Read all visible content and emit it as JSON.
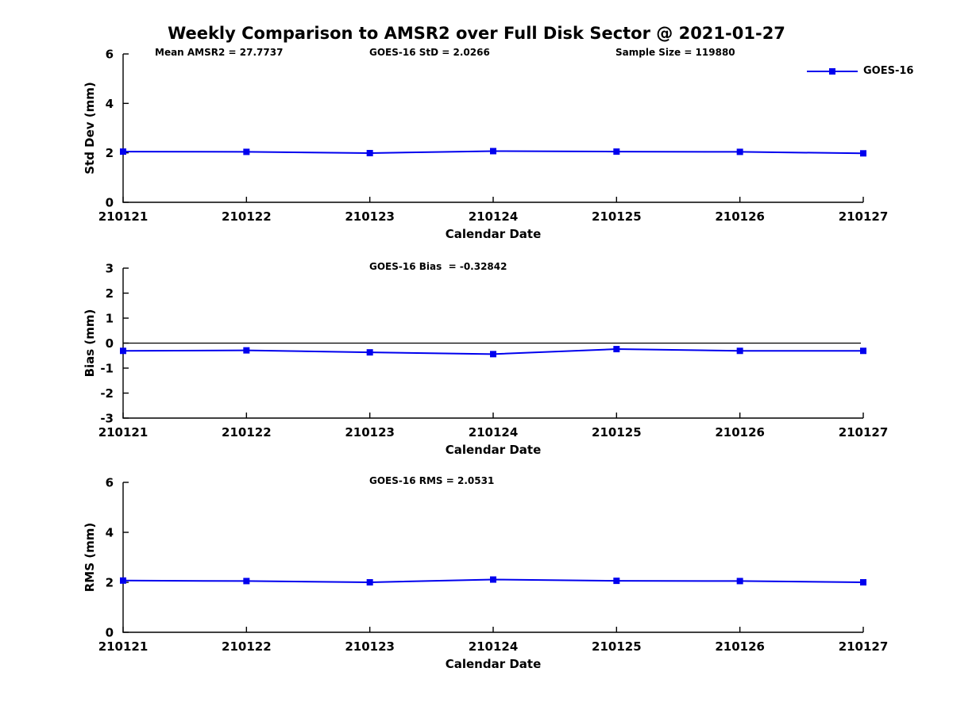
{
  "figure": {
    "title": "Weekly Comparison to AMSR2 over Full Disk Sector @ 2021-01-27",
    "stats_row": {
      "mean_amsr2": "Mean AMSR2 = 27.7737",
      "goes16_std": "GOES-16 StD = 2.0266",
      "sample_size": "Sample Size = 119880"
    },
    "legend": {
      "label": "GOES-16",
      "color": "#0000ee",
      "marker": "filled-square"
    },
    "colors": {
      "line": "#0000ee",
      "axis": "#000000",
      "background": "#ffffff"
    }
  },
  "chart_data": [
    {
      "type": "line",
      "id": "std-dev",
      "annotation": "",
      "xlabel": "Calendar Date",
      "ylabel": "Std Dev (mm)",
      "ylim": [
        0,
        6
      ],
      "yticks": [
        0,
        2,
        4,
        6
      ],
      "categories": [
        "210121",
        "210122",
        "210123",
        "210124",
        "210125",
        "210126",
        "210127"
      ],
      "series": [
        {
          "name": "GOES-16",
          "color": "#0000ee",
          "values": [
            2.05,
            2.04,
            1.99,
            2.07,
            2.05,
            2.04,
            1.98
          ]
        }
      ],
      "zero_line": false,
      "grid": false,
      "legend_position": "top-right",
      "stats": {
        "mean_amsr2": 27.7737,
        "goes16_std": 2.0266,
        "sample_size": 119880
      }
    },
    {
      "type": "line",
      "id": "bias",
      "annotation": "GOES-16 Bias  = -0.32842",
      "xlabel": "Calendar Date",
      "ylabel": "Bias (mm)",
      "ylim": [
        -3,
        3
      ],
      "yticks": [
        -3,
        -2,
        -1,
        0,
        1,
        2,
        3
      ],
      "categories": [
        "210121",
        "210122",
        "210123",
        "210124",
        "210125",
        "210126",
        "210127"
      ],
      "series": [
        {
          "name": "GOES-16",
          "color": "#0000ee",
          "values": [
            -0.31,
            -0.29,
            -0.37,
            -0.44,
            -0.24,
            -0.31,
            -0.31
          ]
        }
      ],
      "zero_line": true,
      "grid": false,
      "stats": {
        "goes16_bias": -0.32842
      }
    },
    {
      "type": "line",
      "id": "rms",
      "annotation": "GOES-16 RMS = 2.0531",
      "xlabel": "Calendar Date",
      "ylabel": "RMS (mm)",
      "ylim": [
        0,
        6
      ],
      "yticks": [
        0,
        2,
        4,
        6
      ],
      "categories": [
        "210121",
        "210122",
        "210123",
        "210124",
        "210125",
        "210126",
        "210127"
      ],
      "series": [
        {
          "name": "GOES-16",
          "color": "#0000ee",
          "values": [
            2.07,
            2.05,
            2.0,
            2.11,
            2.06,
            2.05,
            2.0
          ]
        }
      ],
      "zero_line": false,
      "grid": false,
      "stats": {
        "goes16_rms": 2.0531
      }
    }
  ]
}
